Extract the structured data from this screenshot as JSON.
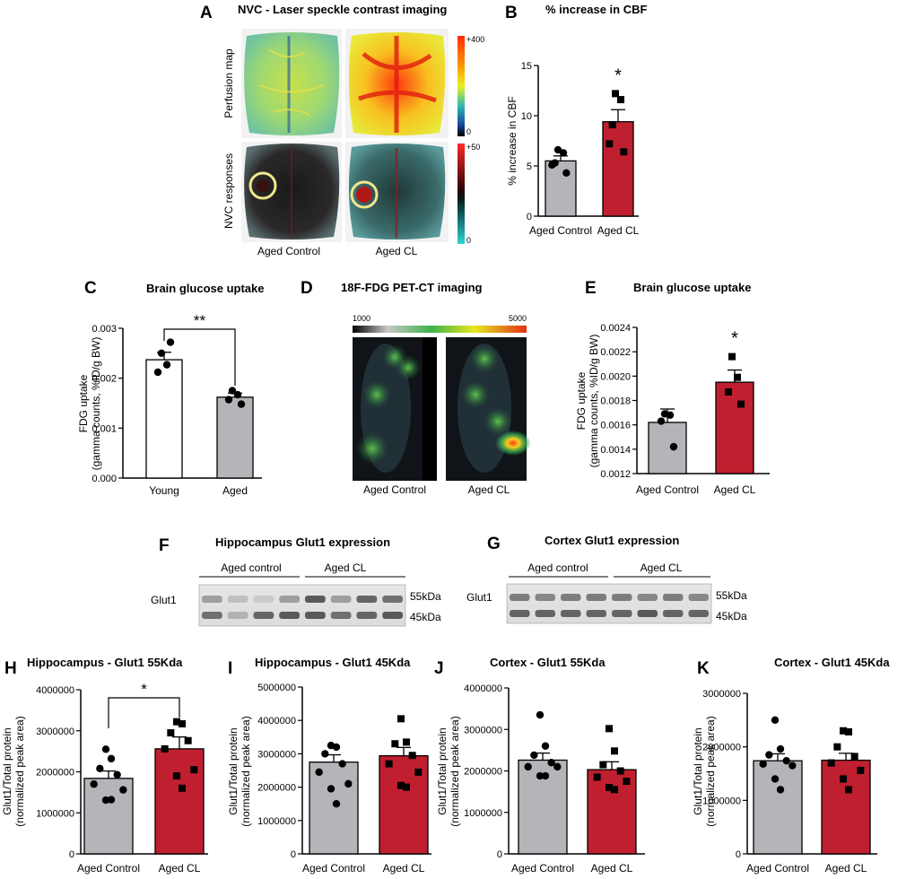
{
  "colors": {
    "control": "#b3b5b8",
    "cl": "#c01f2f",
    "young": "#ffffff",
    "outline": "#000000"
  },
  "panels": {
    "A": {
      "letter": "A",
      "title": "NVC - Laser speckle contrast imaging",
      "row_labels": [
        "Perfusion map",
        "NVC responses"
      ],
      "col_labels": [
        "Aged Control",
        "Aged CL"
      ],
      "scale1": {
        "max": "+400",
        "min": "0"
      },
      "scale2": {
        "max": "+50",
        "min": "0"
      }
    },
    "D": {
      "letter": "D",
      "title": "18F-FDG PET-CT imaging",
      "scale_min": "1000",
      "scale_max": "5000",
      "col_labels": [
        "Aged Control",
        "Aged CL"
      ]
    },
    "F": {
      "letter": "F",
      "title": "Hippocampus Glut1 expression",
      "group_labels": [
        "Aged control",
        "Aged CL"
      ],
      "row_label": "Glut1",
      "kda": [
        "55kDa",
        "45kDa"
      ]
    },
    "G": {
      "letter": "G",
      "title": "Cortex Glut1 expression",
      "group_labels": [
        "Aged control",
        "Aged CL"
      ],
      "row_label": "Glut1",
      "kda": [
        "55kDa",
        "45kDa"
      ]
    }
  },
  "chart_data": [
    {
      "id": "B",
      "type": "bar",
      "letter": "B",
      "title": "% increase in CBF",
      "ylabel": "% increase in CBF",
      "ylim": [
        0,
        15
      ],
      "yticks": [
        "0",
        "5",
        "10",
        "15"
      ],
      "categories": [
        "Aged Control",
        "Aged CL"
      ],
      "values": [
        5.5,
        9.4
      ],
      "sem": [
        0.5,
        1.2
      ],
      "points": [
        [
          6.6,
          6.3,
          5.3,
          4.3,
          5.1
        ],
        [
          12.2,
          11.6,
          9.1,
          6.4,
          7.2
        ]
      ],
      "annotation": "*"
    },
    {
      "id": "C",
      "type": "bar",
      "letter": "C",
      "title": "Brain glucose uptake",
      "ylabel": [
        "FDG uptake",
        "(gamma counts, %ID/g BW)"
      ],
      "ylim": [
        0,
        0.003
      ],
      "yticks": [
        "0.000",
        "0.001",
        "0.002",
        "0.003"
      ],
      "categories": [
        "Young",
        "Aged"
      ],
      "values": [
        0.00237,
        0.00162
      ],
      "sem": [
        0.00015,
        8e-05
      ],
      "points": [
        [
          0.0025,
          0.00227,
          0.00212,
          0.00272
        ],
        [
          0.00175,
          0.00167,
          0.00157,
          0.00148
        ]
      ],
      "annotation": "**"
    },
    {
      "id": "E",
      "type": "bar",
      "letter": "E",
      "title": "Brain glucose uptake",
      "ylabel": [
        "FDG uptake",
        "(gamma counts, %ID/g BW)"
      ],
      "ylim": [
        0.0012,
        0.0024
      ],
      "yticks": [
        "0.0012",
        "0.0014",
        "0.0016",
        "0.0018",
        "0.0020",
        "0.0022",
        "0.0024"
      ],
      "categories": [
        "Aged Control",
        "Aged CL"
      ],
      "values": [
        0.00162,
        0.00195
      ],
      "sem": [
        0.00011,
        0.0001
      ],
      "points": [
        [
          0.00169,
          0.00168,
          0.00163,
          0.00142
        ],
        [
          0.00216,
          0.00199,
          0.00187,
          0.00177
        ]
      ],
      "annotation": "*"
    },
    {
      "id": "H",
      "type": "bar",
      "letter": "H",
      "title": "Hippocampus - Glut1 55Kda",
      "ylabel": [
        "Glut1/Total protein",
        "(normalized peak area)"
      ],
      "ylim": [
        0,
        4000000
      ],
      "yticks": [
        "0",
        "1000000",
        "2000000",
        "3000000",
        "4000000"
      ],
      "categories": [
        "Aged Control",
        "Aged CL"
      ],
      "values": [
        1840000,
        2560000
      ],
      "sem": [
        180000,
        290000
      ],
      "points": [
        [
          2550000,
          2320000,
          2080000,
          1930000,
          1700000,
          1560000,
          1310000,
          1320000
        ],
        [
          3220000,
          3170000,
          2950000,
          2760000,
          2560000,
          2050000,
          1900000,
          1600000
        ]
      ],
      "annotation": "*"
    },
    {
      "id": "I",
      "type": "bar",
      "letter": "I",
      "title": "Hippocampus - Glut1 45Kda",
      "ylabel": [
        "Glut1/Total protein",
        "(normalized peak area)"
      ],
      "ylim": [
        0,
        5000000
      ],
      "yticks": [
        "0",
        "1000000",
        "2000000",
        "3000000",
        "4000000",
        "5000000"
      ],
      "categories": [
        "Aged Control",
        "Aged CL"
      ],
      "values": [
        2750000,
        2940000
      ],
      "sem": [
        220000,
        250000
      ],
      "points": [
        [
          3250000,
          3200000,
          3000000,
          2700000,
          2450000,
          2100000,
          1950000,
          1500000
        ],
        [
          4050000,
          3350000,
          3300000,
          2950000,
          2700000,
          2450000,
          2050000,
          2000000
        ]
      ],
      "annotation": ""
    },
    {
      "id": "J",
      "type": "bar",
      "letter": "J",
      "title": "Cortex - Glut1 55Kda",
      "ylabel": [
        "Glut1/Total protein",
        "(normalized peak area)"
      ],
      "ylim": [
        0,
        4000000
      ],
      "yticks": [
        "0",
        "1000000",
        "2000000",
        "3000000",
        "4000000"
      ],
      "categories": [
        "Aged Control",
        "Aged CL"
      ],
      "values": [
        2260000,
        2030000
      ],
      "sem": [
        170000,
        190000
      ],
      "points": [
        [
          3350000,
          2600000,
          2380000,
          2200000,
          2100000,
          2100000,
          1880000,
          1880000
        ],
        [
          3020000,
          2480000,
          2150000,
          2000000,
          1850000,
          1750000,
          1600000,
          1550000
        ]
      ],
      "annotation": ""
    },
    {
      "id": "K",
      "type": "bar",
      "letter": "K",
      "title": "Cortex - Glut1 45Kda",
      "ylabel": [
        "Glut1/Total protein",
        "(normalized peak area)"
      ],
      "ylim": [
        0,
        3000000
      ],
      "yticks": [
        "0",
        "1000000",
        "2000000",
        "3000000"
      ],
      "categories": [
        "Aged Control",
        "Aged CL"
      ],
      "values": [
        1740000,
        1750000
      ],
      "sem": [
        130000,
        130000
      ],
      "points": [
        [
          2500000,
          1960000,
          1850000,
          1740000,
          1680000,
          1650000,
          1400000,
          1200000
        ],
        [
          2300000,
          2280000,
          2000000,
          1820000,
          1700000,
          1560000,
          1400000,
          1200000
        ]
      ],
      "annotation": ""
    }
  ]
}
